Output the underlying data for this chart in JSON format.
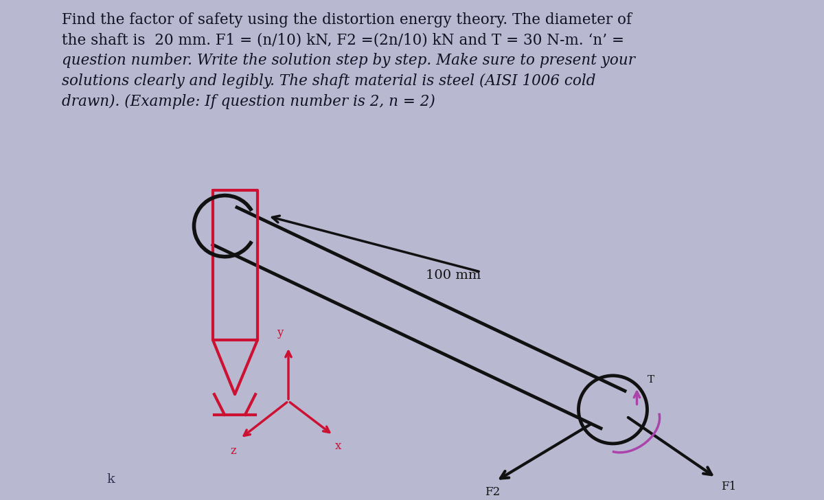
{
  "bg_color": "#b8b8d0",
  "text_color": "#111122",
  "title_text": "Find the factor of safety using the distortion energy theory. The diameter of\nthe shaft is  20 mm. F1 = (n/10) kN, F2 =(2n/10) kN and T = 30 N-m. ‘n’ =\nquestion number. Write the solution step by step. Make sure to present your\nsolutions clearly and legibly. The shaft material is steel (AISI 1006 cold\ndrawn). (Example: If question number is 2, n = 2)",
  "dim_label": "100 mm",
  "label_F1": "F1",
  "label_F2": "F2",
  "label_T": "T",
  "label_x": "x",
  "label_y": "y",
  "label_z": "z",
  "red_color": "#cc1133",
  "black_color": "#111111",
  "title_fontsize": 15.5,
  "diagram_fontsize": 11
}
